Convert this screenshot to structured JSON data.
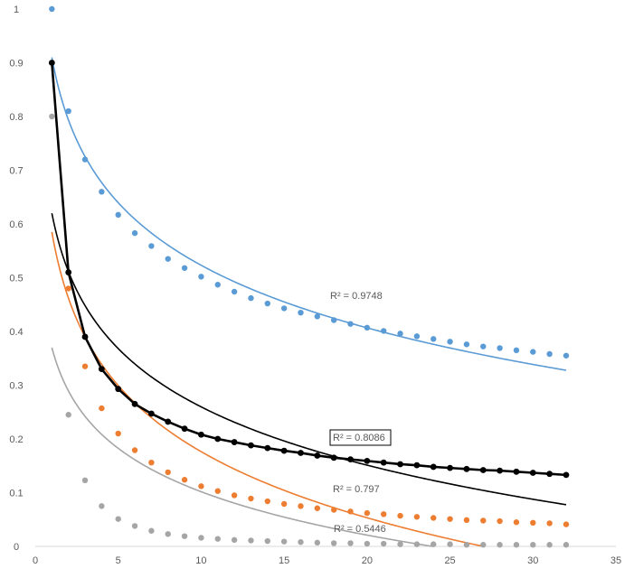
{
  "chart_data": {
    "type": "scatter",
    "xlim": [
      0,
      35
    ],
    "ylim": [
      0,
      1
    ],
    "x_ticks": [
      0,
      5,
      10,
      15,
      20,
      25,
      30,
      35
    ],
    "y_ticks": [
      0,
      0.1,
      0.2,
      0.3,
      0.4,
      0.5,
      0.6,
      0.7,
      0.8,
      0.9,
      1
    ],
    "grid": false,
    "legend": "none",
    "series": [
      {
        "color": "#5B9BD5",
        "marker": "dot",
        "x": [
          1,
          2,
          3,
          4,
          5,
          6,
          7,
          8,
          9,
          10,
          11,
          12,
          13,
          14,
          15,
          16,
          17,
          18,
          19,
          20,
          21,
          22,
          23,
          24,
          25,
          26,
          27,
          28,
          29,
          30,
          31,
          32
        ],
        "y": [
          1.0,
          0.81,
          0.72,
          0.66,
          0.617,
          0.583,
          0.559,
          0.535,
          0.518,
          0.502,
          0.487,
          0.474,
          0.462,
          0.452,
          0.443,
          0.435,
          0.428,
          0.421,
          0.414,
          0.407,
          0.401,
          0.396,
          0.391,
          0.386,
          0.381,
          0.376,
          0.372,
          0.369,
          0.365,
          0.362,
          0.358,
          0.355
        ],
        "trendline": {
          "type": "log",
          "a": 0.91,
          "b": -0.168,
          "r2_label": "R² = 0.9748"
        }
      },
      {
        "color": "#ED7D31",
        "marker": "dot",
        "x": [
          1,
          2,
          3,
          4,
          5,
          6,
          7,
          8,
          9,
          10,
          11,
          12,
          13,
          14,
          15,
          16,
          17,
          18,
          19,
          20,
          21,
          22,
          23,
          24,
          25,
          26,
          27,
          28,
          29,
          30,
          31,
          32
        ],
        "y": [
          0.9,
          0.48,
          0.335,
          0.257,
          0.21,
          0.179,
          0.156,
          0.138,
          0.124,
          0.112,
          0.103,
          0.095,
          0.089,
          0.084,
          0.079,
          0.075,
          0.071,
          0.068,
          0.065,
          0.062,
          0.06,
          0.057,
          0.055,
          0.053,
          0.051,
          0.049,
          0.048,
          0.047,
          0.045,
          0.044,
          0.043,
          0.041
        ],
        "trendline": {
          "type": "log",
          "a": 0.585,
          "b": -0.1775,
          "r2_label": "R² = 0.797"
        }
      },
      {
        "color": "#A5A5A5",
        "marker": "dot",
        "x": [
          1,
          2,
          3,
          4,
          5,
          6,
          7,
          8,
          9,
          10,
          11,
          12,
          13,
          14,
          15,
          16,
          17,
          18,
          19,
          20,
          21,
          22,
          23,
          24,
          25,
          26,
          27,
          28,
          29,
          30,
          31,
          32
        ],
        "y": [
          0.8,
          0.245,
          0.123,
          0.075,
          0.051,
          0.038,
          0.029,
          0.023,
          0.019,
          0.016,
          0.014,
          0.012,
          0.011,
          0.01,
          0.009,
          0.008,
          0.007,
          0.006,
          0.006,
          0.005,
          0.005,
          0.004,
          0.004,
          0.004,
          0.004,
          0.003,
          0.003,
          0.003,
          0.003,
          0.003,
          0.003,
          0.003
        ],
        "trendline": {
          "type": "log",
          "a": 0.37,
          "b": -0.1165,
          "r2_label": "R² = 0.5446"
        }
      },
      {
        "color": "#000000",
        "marker": "dot-line",
        "x": [
          1,
          2,
          3,
          4,
          5,
          6,
          7,
          8,
          9,
          10,
          11,
          12,
          13,
          14,
          15,
          16,
          17,
          18,
          19,
          20,
          21,
          22,
          23,
          24,
          25,
          26,
          27,
          28,
          29,
          30,
          31,
          32
        ],
        "y": [
          0.9,
          0.51,
          0.39,
          0.33,
          0.293,
          0.265,
          0.247,
          0.232,
          0.219,
          0.208,
          0.2,
          0.194,
          0.188,
          0.183,
          0.178,
          0.174,
          0.169,
          0.165,
          0.162,
          0.159,
          0.156,
          0.153,
          0.151,
          0.148,
          0.146,
          0.144,
          0.142,
          0.141,
          0.139,
          0.137,
          0.135,
          0.133
        ],
        "trendline": {
          "type": "log",
          "a": 0.62,
          "b": -0.1565,
          "r2_label": "R² = 0.8086",
          "r2_boxed": true
        }
      }
    ]
  }
}
